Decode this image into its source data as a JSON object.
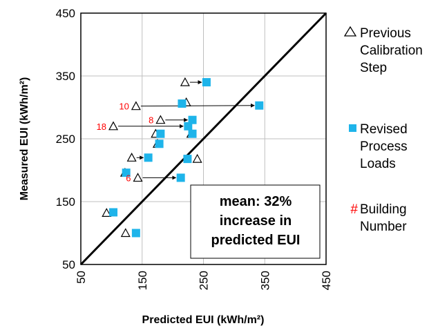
{
  "chart_data": {
    "type": "scatter",
    "xlabel": "Predicted EUI (kWh/m²)",
    "ylabel": "Measured EUI (kWh/m²)",
    "xlim": [
      50,
      450
    ],
    "ylim": [
      50,
      450
    ],
    "xticks": [
      50,
      150,
      250,
      350,
      450
    ],
    "yticks": [
      50,
      150,
      250,
      350,
      450
    ],
    "grid": true,
    "reference_line": "y = x",
    "series": [
      {
        "name": "Previous Calibration Step",
        "marker": "triangle",
        "points": [
          [
            220,
            340
          ],
          [
            140,
            302
          ],
          [
            222,
            308
          ],
          [
            180,
            280
          ],
          [
            103,
            270
          ],
          [
            172,
            258
          ],
          [
            230,
            258
          ],
          [
            175,
            242
          ],
          [
            133,
            220
          ],
          [
            240,
            218
          ],
          [
            122,
            196
          ],
          [
            143,
            188
          ],
          [
            92,
            132
          ],
          [
            123,
            100
          ]
        ]
      },
      {
        "name": "Revised Process Loads",
        "marker": "square",
        "points": [
          [
            255,
            340
          ],
          [
            341,
            303
          ],
          [
            215,
            306
          ],
          [
            232,
            280
          ],
          [
            225,
            270
          ],
          [
            180,
            258
          ],
          [
            232,
            258
          ],
          [
            178,
            242
          ],
          [
            160,
            220
          ],
          [
            224,
            218
          ],
          [
            124,
            196
          ],
          [
            213,
            188
          ],
          [
            103,
            133
          ],
          [
            140,
            100
          ]
        ]
      }
    ],
    "arrows": [
      {
        "from": [
          140,
          302
        ],
        "to": [
          341,
          303
        ]
      },
      {
        "from": [
          180,
          280
        ],
        "to": [
          232,
          280
        ]
      },
      {
        "from": [
          103,
          270
        ],
        "to": [
          225,
          270
        ]
      },
      {
        "from": [
          133,
          220
        ],
        "to": [
          160,
          220
        ]
      },
      {
        "from": [
          143,
          188
        ],
        "to": [
          213,
          188
        ]
      },
      {
        "from": [
          220,
          340
        ],
        "to": [
          255,
          340
        ]
      }
    ],
    "building_numbers": [
      {
        "text": "10",
        "x": 140,
        "y": 302
      },
      {
        "text": "8",
        "x": 180,
        "y": 280
      },
      {
        "text": "18",
        "x": 103,
        "y": 270
      },
      {
        "text": "6",
        "x": 143,
        "y": 188
      }
    ],
    "annotation": {
      "lines": [
        "mean: 32%",
        "increase in",
        "predicted EUI"
      ]
    },
    "legend": {
      "placement": "right",
      "entries": [
        {
          "symbol": "△",
          "lines": [
            "Previous",
            "Calibration",
            "Step"
          ]
        },
        {
          "symbol": "■",
          "lines": [
            "Revised",
            "Process",
            "Loads"
          ]
        },
        {
          "symbol": "#",
          "lines": [
            "Building",
            "Number"
          ]
        }
      ]
    },
    "colors": {
      "square": "#1eb4ea",
      "triangle_fill": "#ffffff",
      "triangle_stroke": "#000000",
      "number": "#ff0000",
      "grid": "#bfbfbf",
      "line": "#000000"
    }
  }
}
